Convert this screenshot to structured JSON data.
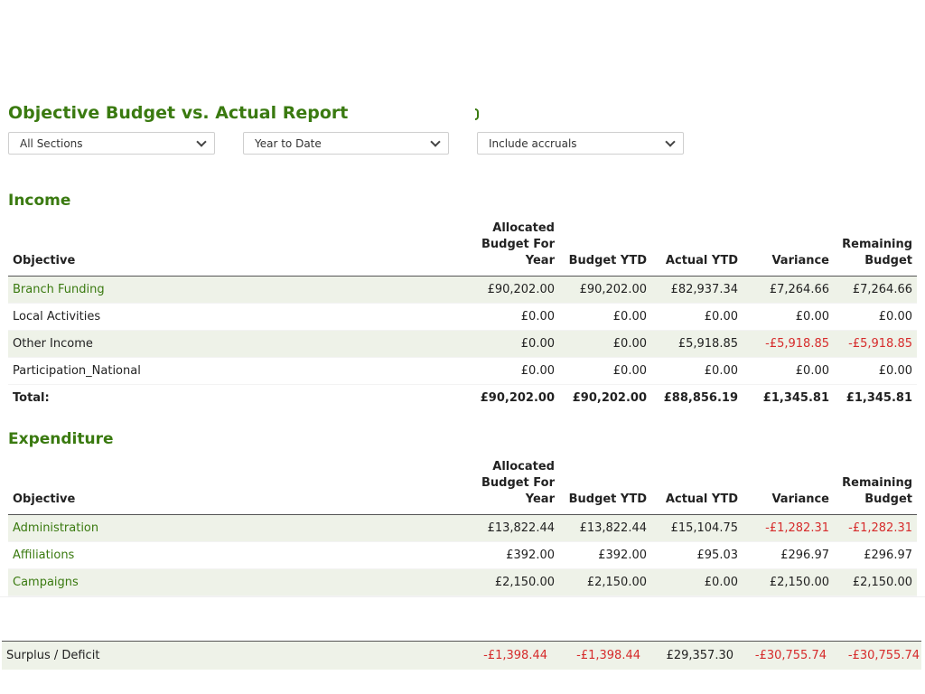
{
  "report": {
    "title": "Objective Budget vs. Actual Report",
    "filters": {
      "section": "All Sections",
      "period": "Year to Date",
      "accruals": "Include accruals"
    }
  },
  "columns": {
    "objective": "Objective",
    "allocated_l1": "Allocated",
    "allocated_l2": "Budget For",
    "allocated_l3": "Year",
    "budget_ytd": "Budget YTD",
    "actual_ytd": "Actual YTD",
    "variance": "Variance",
    "remaining_l1": "Remaining",
    "remaining_l2": "Budget"
  },
  "income": {
    "heading": "Income",
    "rows": [
      {
        "name": "Branch Funding",
        "allocated": "£90,202.00",
        "budget_ytd": "£90,202.00",
        "actual_ytd": "£82,937.34",
        "variance": "£7,264.66",
        "remaining": "£7,264.66"
      },
      {
        "name": "Local Activities",
        "allocated": "£0.00",
        "budget_ytd": "£0.00",
        "actual_ytd": "£0.00",
        "variance": "£0.00",
        "remaining": "£0.00"
      },
      {
        "name": "Other Income",
        "allocated": "£0.00",
        "budget_ytd": "£0.00",
        "actual_ytd": "£5,918.85",
        "variance": "-£5,918.85",
        "remaining": "-£5,918.85"
      },
      {
        "name": "Participation_National",
        "allocated": "£0.00",
        "budget_ytd": "£0.00",
        "actual_ytd": "£0.00",
        "variance": "£0.00",
        "remaining": "£0.00"
      }
    ],
    "total": {
      "label": "Total:",
      "allocated": "£90,202.00",
      "budget_ytd": "£90,202.00",
      "actual_ytd": "£88,856.19",
      "variance": "£1,345.81",
      "remaining": "£1,345.81"
    }
  },
  "expenditure": {
    "heading": "Expenditure",
    "rows": [
      {
        "name": "Administration",
        "allocated": "£13,822.44",
        "budget_ytd": "£13,822.44",
        "actual_ytd": "£15,104.75",
        "variance": "-£1,282.31",
        "remaining": "-£1,282.31"
      },
      {
        "name": "Affiliations",
        "allocated": "£392.00",
        "budget_ytd": "£392.00",
        "actual_ytd": "£95.03",
        "variance": "£296.97",
        "remaining": "£296.97"
      },
      {
        "name": "Campaigns",
        "allocated": "£2,150.00",
        "budget_ytd": "£2,150.00",
        "actual_ytd": "£0.00",
        "variance": "£2,150.00",
        "remaining": "£2,150.00"
      }
    ]
  },
  "surplus": {
    "label": "Surplus / Deficit",
    "allocated": "-£1,398.44",
    "budget_ytd": "-£1,398.44",
    "actual_ytd": "£29,357.30",
    "variance": "-£30,755.74",
    "remaining": "-£30,755.74"
  },
  "colors": {
    "accent": "#3a7a10",
    "negative": "#d62b2b",
    "stripe": "#eef2e8"
  }
}
